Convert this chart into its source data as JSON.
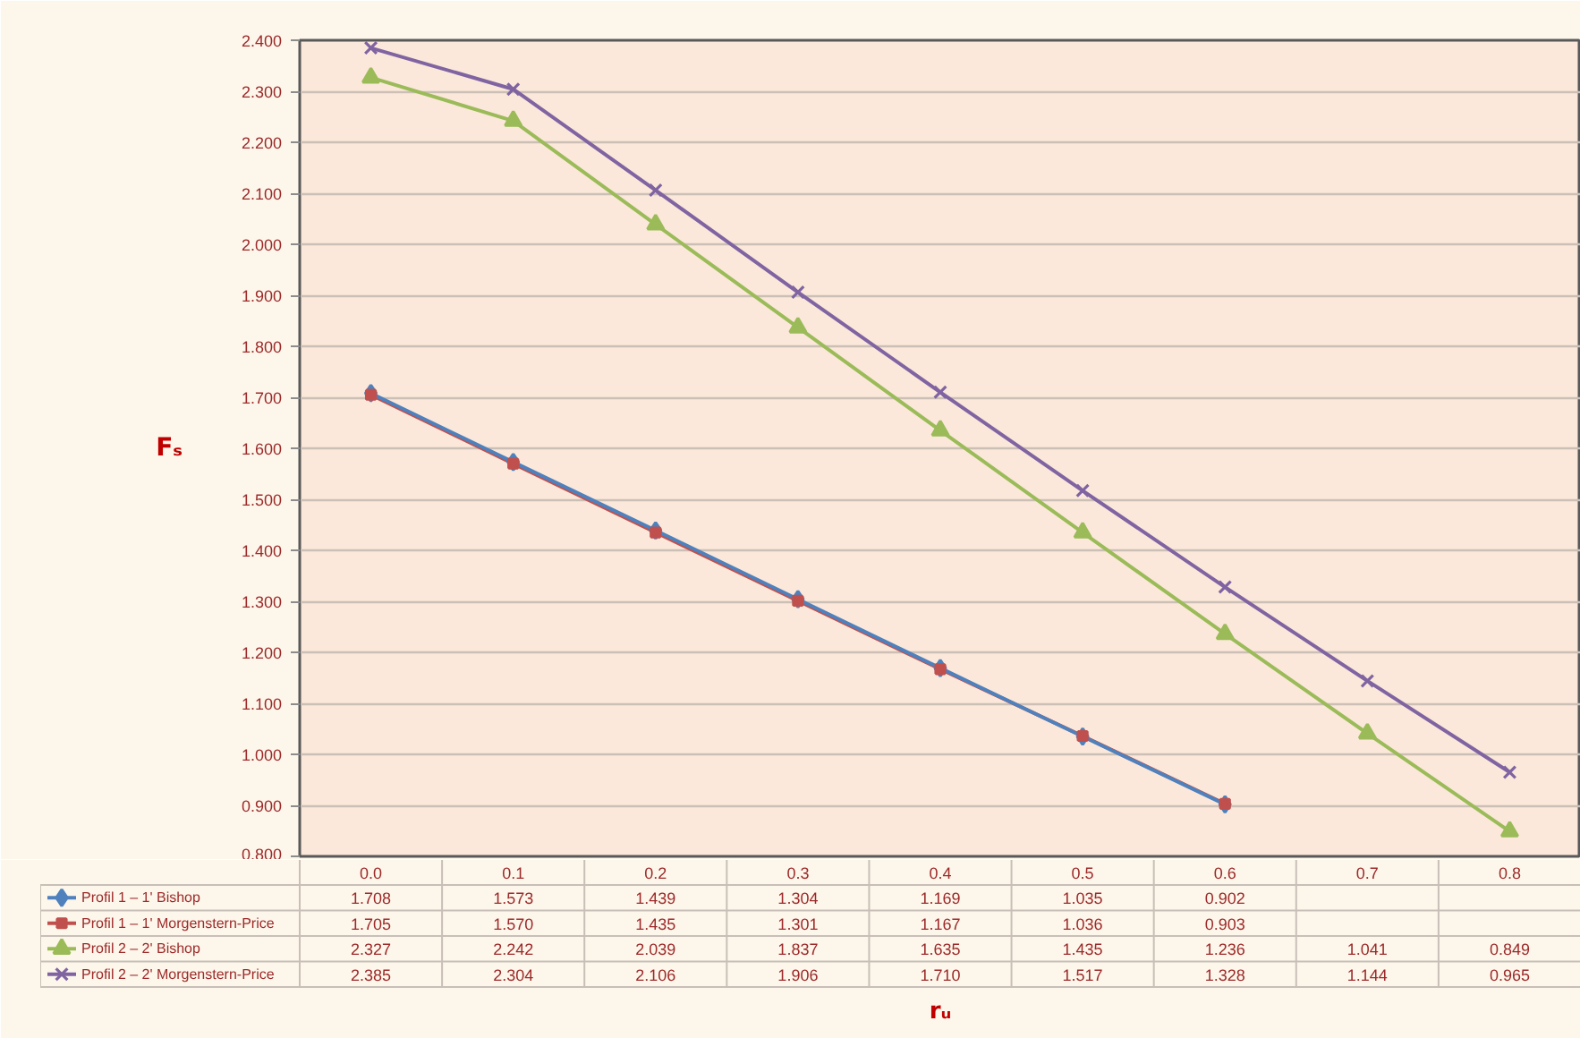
{
  "chart_data": {
    "type": "line",
    "xlabel": "rᵤ",
    "ylabel": "Fₛ",
    "categories": [
      "0.0",
      "0.1",
      "0.2",
      "0.3",
      "0.4",
      "0.5",
      "0.6",
      "0.7",
      "0.8"
    ],
    "series": [
      {
        "name": "Profil 1 – 1' Bishop",
        "color": "#4f81bd",
        "marker": "diamond",
        "values": [
          1.708,
          1.573,
          1.439,
          1.304,
          1.169,
          1.035,
          0.902,
          null,
          null
        ],
        "value_labels": [
          "1.708",
          "1.573",
          "1.439",
          "1.304",
          "1.169",
          "1.035",
          "0.902",
          null,
          null
        ]
      },
      {
        "name": "Profil 1 – 1' Morgenstern-Price",
        "color": "#c0504d",
        "marker": "square",
        "values": [
          1.705,
          1.57,
          1.435,
          1.301,
          1.167,
          1.036,
          0.903,
          null,
          null
        ],
        "value_labels": [
          "1.705",
          "1.570",
          "1.435",
          "1.301",
          "1.167",
          "1.036",
          "0.903",
          null,
          null
        ]
      },
      {
        "name": "Profil 2 – 2' Bishop",
        "color": "#9bbb59",
        "marker": "triangle",
        "values": [
          2.327,
          2.242,
          2.039,
          1.837,
          1.635,
          1.435,
          1.236,
          1.041,
          0.849
        ],
        "value_labels": [
          "2.327",
          "2.242",
          "2.039",
          "1.837",
          "1.635",
          "1.435",
          "1.236",
          "1.041",
          "0.849"
        ]
      },
      {
        "name": "Profil 2 – 2' Morgenstern-Price",
        "color": "#8064a2",
        "marker": "cross",
        "values": [
          2.385,
          2.304,
          2.106,
          1.906,
          1.71,
          1.517,
          1.328,
          1.144,
          0.965
        ],
        "value_labels": [
          "2.385",
          "2.304",
          "2.106",
          "1.906",
          "1.710",
          "1.517",
          "1.328",
          "1.144",
          "0.965"
        ]
      }
    ],
    "ylim": [
      0.8,
      2.4
    ],
    "yticks": [
      {
        "value": 0.8,
        "label": "0.800"
      },
      {
        "value": 0.9,
        "label": "0.900"
      },
      {
        "value": 1.0,
        "label": "1.000"
      },
      {
        "value": 1.1,
        "label": "1.100"
      },
      {
        "value": 1.2,
        "label": "1.200"
      },
      {
        "value": 1.3,
        "label": "1.300"
      },
      {
        "value": 1.4,
        "label": "1.400"
      },
      {
        "value": 1.5,
        "label": "1.500"
      },
      {
        "value": 1.6,
        "label": "1.600"
      },
      {
        "value": 1.7,
        "label": "1.700"
      },
      {
        "value": 1.8,
        "label": "1.800"
      },
      {
        "value": 1.9,
        "label": "1.900"
      },
      {
        "value": 2.0,
        "label": "2.000"
      },
      {
        "value": 2.1,
        "label": "2.100"
      },
      {
        "value": 2.2,
        "label": "2.200"
      },
      {
        "value": 2.3,
        "label": "2.300"
      },
      {
        "value": 2.4,
        "label": "2.400"
      }
    ],
    "grid": "y",
    "legend": "bottom"
  }
}
